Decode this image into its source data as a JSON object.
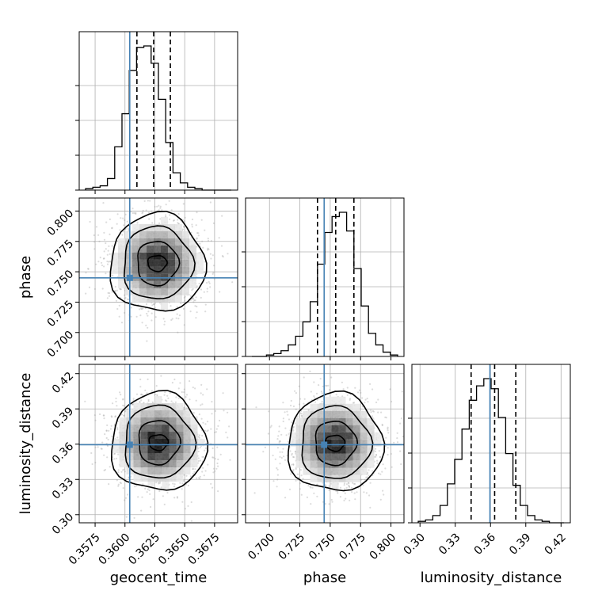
{
  "chart_data": {
    "type": "corner",
    "parameters": [
      "geocent_time",
      "phase",
      "luminosity_distance"
    ],
    "axis_labels": {
      "x": [
        "geocent_time",
        "phase",
        "luminosity_distance"
      ],
      "y": [
        "phase",
        "luminosity_distance"
      ]
    },
    "ticks": {
      "geocent_time": [
        "0.3575",
        "0.3600",
        "0.3625",
        "0.3650",
        "0.3675"
      ],
      "phase": [
        "0.700",
        "0.725",
        "0.750",
        "0.775",
        "0.800"
      ],
      "luminosity_distance": [
        "0.30",
        "0.33",
        "0.36",
        "0.39",
        "0.42"
      ]
    },
    "ranges": {
      "geocent_time": [
        0.3567,
        0.3689
      ],
      "phase": [
        0.6855,
        0.8055
      ],
      "luminosity_distance": [
        0.2985,
        0.4225
      ]
    },
    "truths": {
      "geocent_time": 0.3604,
      "phase": 0.745,
      "luminosity_distance": 0.3595
    },
    "quantiles": {
      "geocent_time": [
        0.361,
        0.3624,
        0.3638
      ],
      "phase": [
        0.7395,
        0.7545,
        0.7695
      ],
      "luminosity_distance": [
        0.3435,
        0.3635,
        0.3815
      ]
    },
    "histograms": {
      "geocent_time": {
        "edges": [
          0.3567,
          0.3689
        ],
        "counts": [
          0.01,
          0.02,
          0.03,
          0.08,
          0.3,
          0.53,
          0.83,
          0.99,
          1.0,
          0.88,
          0.63,
          0.33,
          0.12,
          0.05,
          0.02,
          0.01,
          0.0,
          0.0,
          0.0,
          0.0
        ]
      },
      "phase": {
        "edges": [
          0.6855,
          0.8055
        ],
        "counts": [
          0.0,
          0.0,
          0.01,
          0.02,
          0.04,
          0.08,
          0.14,
          0.24,
          0.38,
          0.64,
          0.86,
          0.97,
          1.0,
          0.87,
          0.61,
          0.35,
          0.16,
          0.08,
          0.03,
          0.01
        ]
      },
      "luminosity_distance": {
        "edges": [
          0.2985,
          0.4225
        ],
        "counts": [
          0.01,
          0.02,
          0.05,
          0.12,
          0.27,
          0.44,
          0.65,
          0.85,
          0.95,
          1.0,
          0.93,
          0.73,
          0.48,
          0.26,
          0.12,
          0.05,
          0.02,
          0.01,
          0.0,
          0.0
        ]
      }
    },
    "density_peaks": {
      "phase_vs_geocent_time": {
        "x": 0.3627,
        "y": 0.757
      },
      "luminosity_distance_vs_geocent_time": {
        "x": 0.3628,
        "y": 0.3615
      },
      "luminosity_distance_vs_phase": {
        "x": 0.754,
        "y": 0.361
      }
    },
    "grid": true,
    "colors": {
      "truth": "#4682b4",
      "hist": "#000000",
      "grid": "#b0b0b0",
      "scatter": "#9a9a9a"
    }
  }
}
